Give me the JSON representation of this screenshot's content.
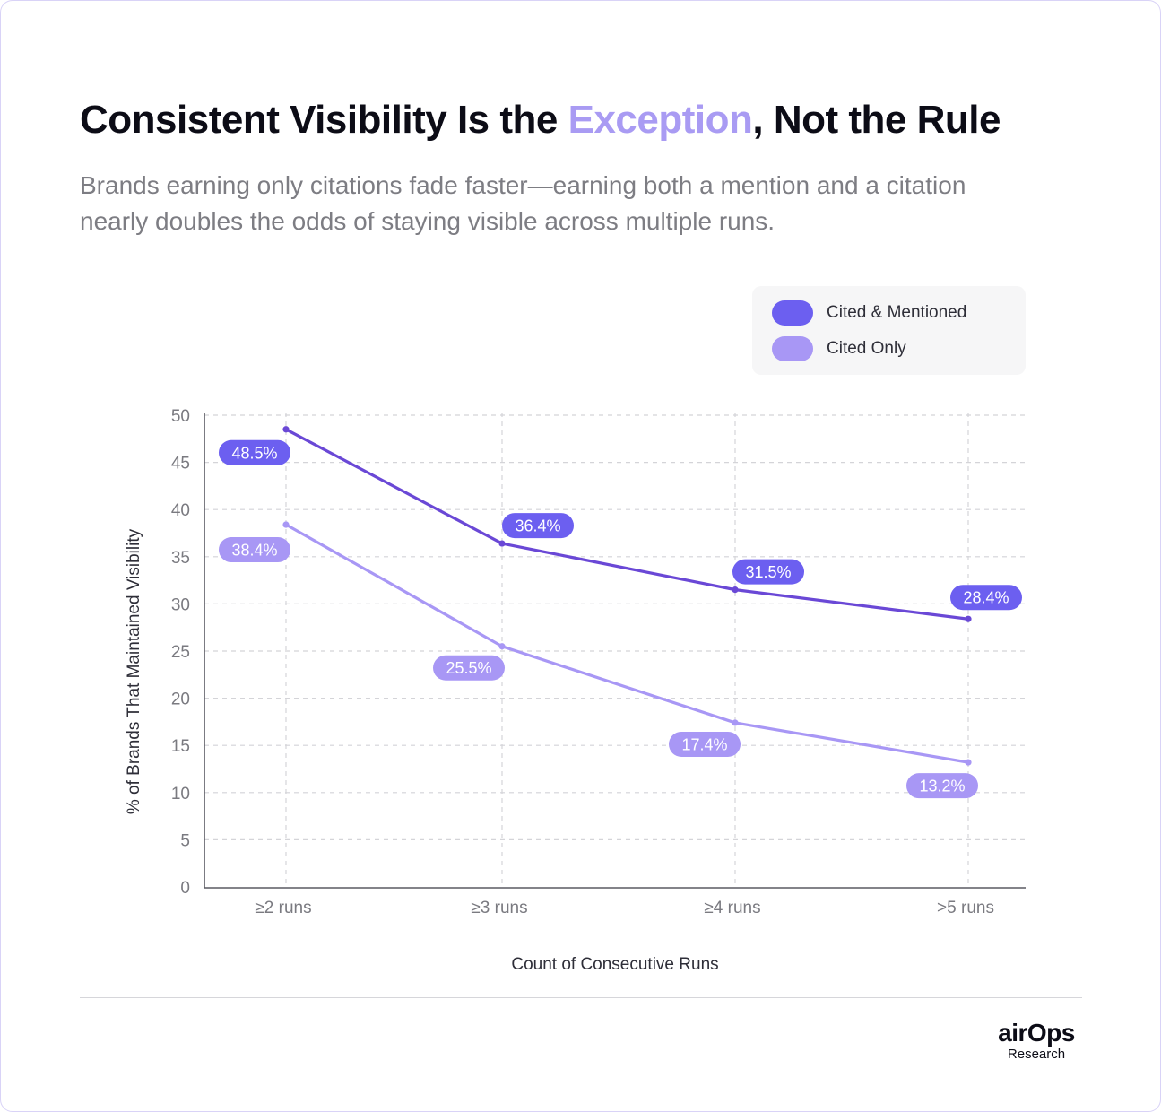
{
  "header": {
    "title_before": "Consistent Visibility Is the ",
    "title_accent": "Exception",
    "title_after": ", Not the Rule",
    "subtitle": "Brands earning only citations fade faster—earning both a mention and a citation nearly doubles the odds of staying visible across multiple runs."
  },
  "colors": {
    "accent": "#a99bf3",
    "cited_mentioned": "#6c5ff0",
    "cited_only": "#a897f5",
    "cited_mentioned_line": "#6a48d6",
    "cited_only_line": "#a897f5",
    "grid": "#d4d4d8"
  },
  "chart_data": {
    "type": "line",
    "title": "",
    "xlabel": "Count of Consecutive Runs",
    "ylabel": "% of Brands That Maintained Visibility",
    "categories": [
      "≥2 runs",
      "≥3 runs",
      "≥4 runs",
      ">5 runs"
    ],
    "y_ticks": [
      "0",
      "5",
      "10",
      "15",
      "20",
      "25",
      "30",
      "35",
      "40",
      "45",
      "50"
    ],
    "ylim": [
      0,
      50
    ],
    "grid": true,
    "legend_position": "top-right",
    "series": [
      {
        "name": "Cited & Mentioned",
        "values": [
          48.5,
          36.4,
          31.5,
          28.4
        ],
        "labels": [
          "48.5%",
          "36.4%",
          "31.5%",
          "28.4%"
        ]
      },
      {
        "name": "Cited Only",
        "values": [
          38.4,
          25.5,
          17.4,
          13.2
        ],
        "labels": [
          "38.4%",
          "25.5%",
          "17.4%",
          "13.2%"
        ]
      }
    ]
  },
  "footer": {
    "brand_name": "airOps",
    "brand_sub": "Research"
  }
}
